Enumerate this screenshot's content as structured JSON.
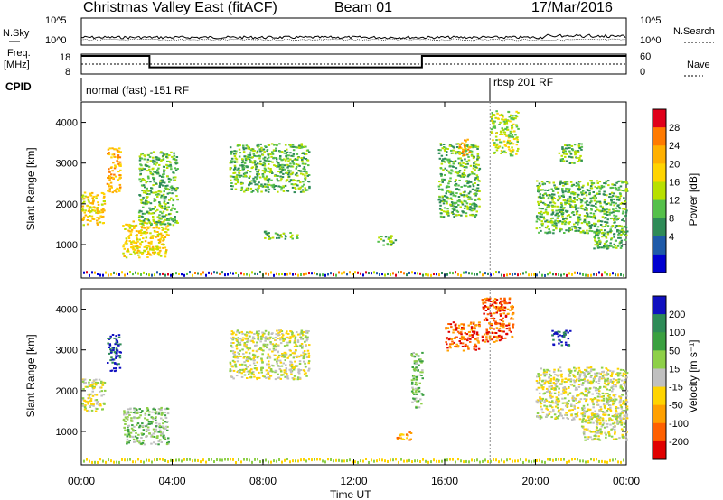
{
  "header": {
    "station": "Christmas Valley East (fitACF)",
    "beam": "Beam 01",
    "date": "17/Mar/2016"
  },
  "strip": {
    "nsky_label": "N.Sky",
    "nsearch_label": "N.Search",
    "noise_ticks": [
      "10^5",
      "10^0"
    ],
    "freq_label_1": "Freq.",
    "freq_label_2": "[MHz]",
    "freq_ticks": [
      "18",
      "8"
    ],
    "nave_ticks": [
      "60",
      "0"
    ],
    "nave_label": "Nave",
    "cpid_label": "CPID",
    "cpid_modes": [
      {
        "label": "normal (fast) -151 RF",
        "start_hour": 0,
        "end_hour": 18
      },
      {
        "label": "rbsp 201 RF",
        "start_hour": 18,
        "end_hour": 24
      }
    ],
    "freq_profile_mhz": [
      {
        "start": 0,
        "end": 3,
        "value": 18
      },
      {
        "start": 3,
        "end": 15,
        "value": 11
      },
      {
        "start": 15,
        "end": 24,
        "value": 18
      }
    ]
  },
  "chart_data": [
    {
      "type": "heatmap",
      "title": "",
      "xlabel": "Time UT",
      "ylabel": "Slant Range [km]",
      "xlim_hours": [
        0,
        24
      ],
      "ylim_km": [
        180,
        4500
      ],
      "y_ticks": [
        1000,
        2000,
        3000,
        4000
      ],
      "colorbar": {
        "label": "Power [dB]",
        "ticks": [
          "28",
          "24",
          "20",
          "16",
          "12",
          "8",
          "4"
        ],
        "colors": [
          "#e0001a",
          "#ff7a00",
          "#ffb000",
          "#ffd400",
          "#b8e000",
          "#55c04a",
          "#2e8b57",
          "#1e5aa8",
          "#0000d0"
        ]
      },
      "regions": [
        {
          "t0": 0.0,
          "t1": 1.0,
          "r0": 1500,
          "r1": 2300,
          "value": 16
        },
        {
          "t0": 1.1,
          "t1": 1.7,
          "r0": 2300,
          "r1": 3400,
          "value": 20
        },
        {
          "t0": 1.8,
          "t1": 3.8,
          "r0": 700,
          "r1": 1600,
          "value": 18
        },
        {
          "t0": 2.5,
          "t1": 4.2,
          "r0": 1500,
          "r1": 3300,
          "value": 8
        },
        {
          "t0": 6.5,
          "t1": 10.0,
          "r0": 2300,
          "r1": 3500,
          "value": 8
        },
        {
          "t0": 8.0,
          "t1": 9.5,
          "r0": 1150,
          "r1": 1350,
          "value": 8
        },
        {
          "t0": 13.0,
          "t1": 13.8,
          "r0": 1000,
          "r1": 1250,
          "value": 8
        },
        {
          "t0": 15.7,
          "t1": 17.5,
          "r0": 1700,
          "r1": 3500,
          "value": 10
        },
        {
          "t0": 16.6,
          "t1": 17.1,
          "r0": 3200,
          "r1": 3600,
          "value": 20
        },
        {
          "t0": 18.0,
          "t1": 19.2,
          "r0": 3200,
          "r1": 4300,
          "value": 14
        },
        {
          "t0": 20.0,
          "t1": 24.0,
          "r0": 1300,
          "r1": 2600,
          "value": 10
        },
        {
          "t0": 21.0,
          "t1": 22.0,
          "r0": 3000,
          "r1": 3500,
          "value": 8
        },
        {
          "t0": 22.5,
          "t1": 24.0,
          "r0": 900,
          "r1": 1400,
          "value": 10
        }
      ]
    },
    {
      "type": "heatmap",
      "title": "",
      "xlabel": "Time UT",
      "ylabel": "Slant Range [km]",
      "xlim_hours": [
        0,
        24
      ],
      "ylim_km": [
        180,
        4500
      ],
      "y_ticks": [
        1000,
        2000,
        3000,
        4000
      ],
      "x_tick_labels": [
        "00:00",
        "04:00",
        "08:00",
        "12:00",
        "16:00",
        "20:00",
        "00:00"
      ],
      "colorbar": {
        "label": "Velocity [m s⁻¹]",
        "ticks": [
          "200",
          "100",
          "50",
          "15",
          "-15",
          "-50",
          "-100",
          "-200"
        ],
        "colors": [
          "#1010c0",
          "#2e8b57",
          "#3aa040",
          "#8ed048",
          "#c0c0c0",
          "#ffd400",
          "#ffa000",
          "#ff6000",
          "#e00000"
        ]
      },
      "regions": [
        {
          "t0": 0.0,
          "t1": 1.0,
          "r0": 1500,
          "r1": 2300,
          "value": 0
        },
        {
          "t0": 1.1,
          "t1": 1.7,
          "r0": 2500,
          "r1": 3400,
          "value": 200
        },
        {
          "t0": 1.8,
          "t1": 3.8,
          "r0": 700,
          "r1": 1600,
          "value": 20
        },
        {
          "t0": 6.5,
          "t1": 10.0,
          "r0": 2300,
          "r1": 3500,
          "value": 0
        },
        {
          "t0": 14.5,
          "t1": 15.0,
          "r0": 1600,
          "r1": 3000,
          "value": 40
        },
        {
          "t0": 16.0,
          "t1": 17.5,
          "r0": 3000,
          "r1": 3700,
          "value": -200
        },
        {
          "t0": 17.6,
          "t1": 19.0,
          "r0": 3200,
          "r1": 4300,
          "value": -200
        },
        {
          "t0": 20.7,
          "t1": 21.5,
          "r0": 3100,
          "r1": 3500,
          "value": 200
        },
        {
          "t0": 20.0,
          "t1": 24.0,
          "r0": 1300,
          "r1": 2600,
          "value": 0
        },
        {
          "t0": 22.0,
          "t1": 24.0,
          "r0": 800,
          "r1": 1400,
          "value": 0
        },
        {
          "t0": 13.8,
          "t1": 14.5,
          "r0": 800,
          "r1": 1000,
          "value": -80
        }
      ]
    }
  ],
  "colors": {
    "frame": "#000000",
    "bg": "#ffffff"
  }
}
